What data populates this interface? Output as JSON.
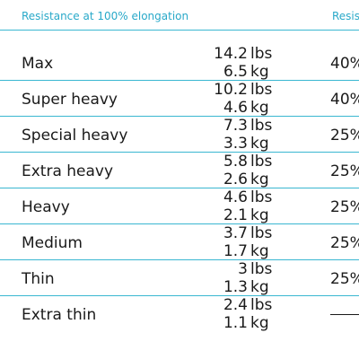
{
  "header": {
    "col1": "Resistance at 100% elongation",
    "col2": "Resis"
  },
  "rows": [
    {
      "name": "Max",
      "lbs": "14.2",
      "kg": "6.5",
      "pct": "40%"
    },
    {
      "name": "Super heavy",
      "lbs": "10.2",
      "kg": "4.6",
      "pct": "40%"
    },
    {
      "name": "Special heavy",
      "lbs": "7.3",
      "kg": "3.3",
      "pct": "25%"
    },
    {
      "name": "Extra heavy",
      "lbs": "5.8",
      "kg": "2.6",
      "pct": "25%"
    },
    {
      "name": "Heavy",
      "lbs": "4.6",
      "kg": "2.1",
      "pct": "25%"
    },
    {
      "name": "Medium",
      "lbs": "3.7",
      "kg": "1.7",
      "pct": "25%"
    },
    {
      "name": "Thin",
      "lbs": "3",
      "kg": "1.3",
      "pct": "25%"
    },
    {
      "name": "Extra thin",
      "lbs": "2.4",
      "kg": "1.1",
      "pct": ""
    }
  ],
  "units": {
    "lbs": "lbs",
    "kg": "kg"
  },
  "colors": {
    "accent": "#29a9c9",
    "rule": "#3ab7d1",
    "text": "#1a1a1a"
  }
}
